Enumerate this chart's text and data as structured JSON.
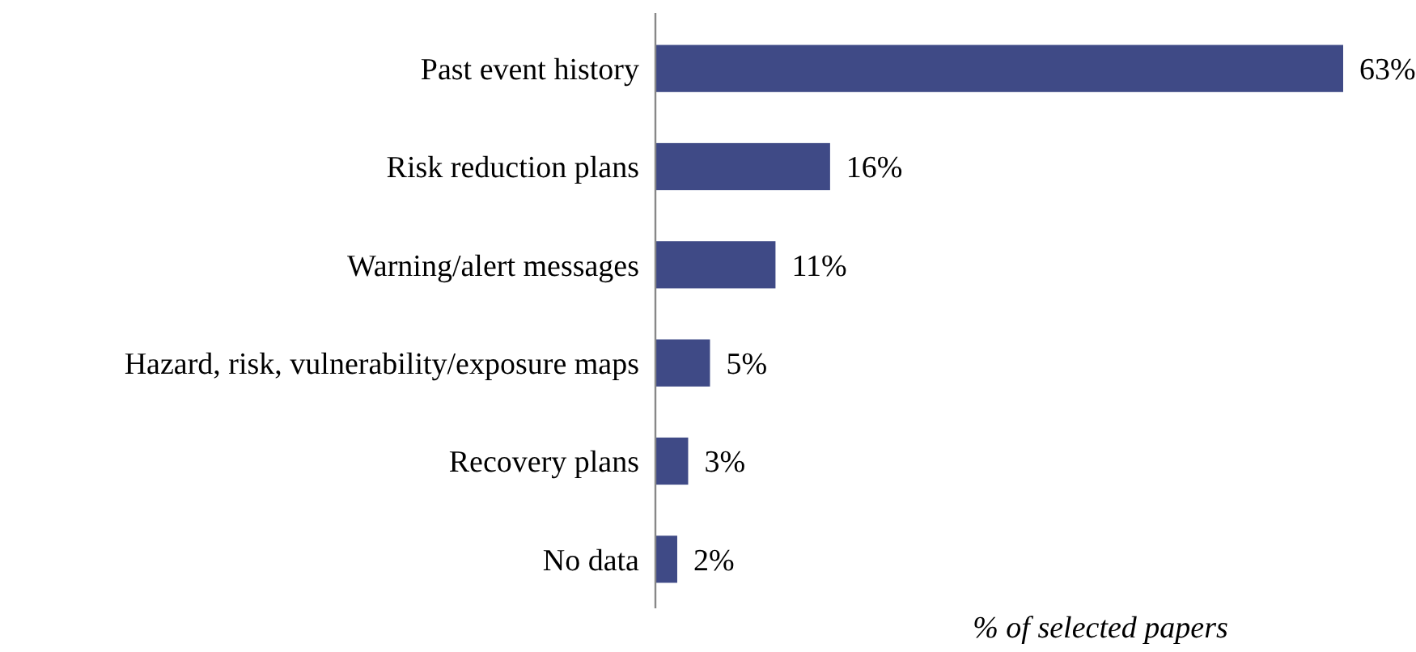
{
  "chart_data": {
    "type": "bar",
    "orientation": "horizontal",
    "xlabel": "% of selected papers",
    "categories": [
      "Past event history",
      "Risk reduction plans",
      "Warning/alert messages",
      "Hazard, risk, vulnerability/exposure maps",
      "Recovery plans",
      "No data"
    ],
    "values": [
      63,
      16,
      11,
      5,
      3,
      2
    ],
    "value_labels": [
      "63%",
      "16%",
      "11%",
      "5%",
      "3%",
      "2%"
    ],
    "color": "#3f4a86"
  }
}
